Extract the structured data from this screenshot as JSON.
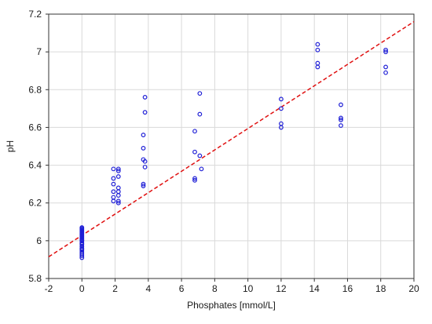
{
  "chart_data": {
    "type": "scatter",
    "title": "",
    "xlabel": "Phosphates [mmol/L]",
    "ylabel": "pH",
    "xlim": [
      -2,
      20
    ],
    "ylim": [
      5.8,
      7.2
    ],
    "xticks": [
      -2,
      0,
      2,
      4,
      6,
      8,
      10,
      12,
      14,
      16,
      18,
      20
    ],
    "yticks": [
      5.8,
      6.0,
      6.2,
      6.4,
      6.6,
      6.8,
      7.0,
      7.2
    ],
    "xtick_labels": [
      "-2",
      "0",
      "2",
      "4",
      "6",
      "8",
      "10",
      "12",
      "14",
      "16",
      "18",
      "20"
    ],
    "ytick_labels": [
      "5.8",
      "6",
      "6.2",
      "6.4",
      "6.6",
      "6.8",
      "7",
      "7.2"
    ],
    "grid": true,
    "legend": "none",
    "colors": {
      "points": "#1f1fd6",
      "trend": "#e01010",
      "grid": "#d9d9d9",
      "axis": "#333333"
    },
    "series": [
      {
        "kind": "points",
        "x": [
          0,
          0,
          0,
          0,
          0,
          0,
          0,
          0,
          0,
          0,
          0,
          0,
          0,
          0,
          0,
          0,
          0,
          0,
          0,
          0,
          0,
          0,
          0,
          0,
          0,
          0,
          0,
          1.9,
          1.9,
          1.9,
          1.9,
          1.9,
          1.9,
          2.2,
          2.2,
          2.2,
          2.2,
          2.2,
          2.2,
          2.2,
          2.2,
          3.7,
          3.7,
          3.7,
          3.7,
          3.7,
          3.8,
          3.8,
          3.8,
          3.8,
          6.8,
          6.8,
          6.8,
          6.8,
          7.1,
          7.1,
          7.1,
          7.2,
          12.0,
          12.0,
          12.0,
          12.0,
          14.2,
          14.2,
          14.2,
          14.2,
          15.6,
          15.6,
          15.6,
          15.6,
          18.3,
          18.3,
          18.3,
          18.3
        ],
        "y": [
          5.91,
          5.92,
          5.93,
          5.94,
          5.95,
          5.96,
          5.97,
          5.98,
          5.99,
          6.0,
          6.005,
          6.01,
          6.015,
          6.02,
          6.025,
          6.03,
          6.035,
          6.04,
          6.045,
          6.05,
          6.055,
          6.06,
          6.065,
          6.07,
          5.955,
          5.985,
          6.0,
          6.38,
          6.33,
          6.3,
          6.26,
          6.23,
          6.21,
          6.38,
          6.37,
          6.34,
          6.28,
          6.26,
          6.24,
          6.21,
          6.2,
          6.56,
          6.49,
          6.43,
          6.3,
          6.29,
          6.76,
          6.68,
          6.42,
          6.39,
          6.58,
          6.47,
          6.33,
          6.32,
          6.78,
          6.67,
          6.45,
          6.38,
          6.75,
          6.7,
          6.62,
          6.6,
          7.04,
          7.01,
          6.94,
          6.92,
          6.72,
          6.65,
          6.64,
          6.61,
          7.01,
          7.0,
          6.92,
          6.89
        ]
      },
      {
        "kind": "trend",
        "x": [
          -2,
          20
        ],
        "y": [
          5.915,
          7.16
        ]
      }
    ]
  }
}
